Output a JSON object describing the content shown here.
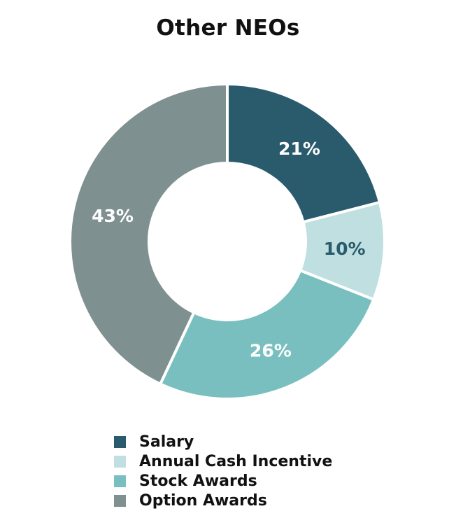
{
  "chart_data": {
    "type": "pie",
    "title": "Other NEOs",
    "categories": [
      "Salary",
      "Annual Cash Incentive",
      "Stock Awards",
      "Option Awards"
    ],
    "values": [
      21,
      10,
      26,
      43
    ],
    "labels": [
      "21%",
      "10%",
      "26%",
      "43%"
    ],
    "colors": [
      "#2a5b6c",
      "#bfdfe0",
      "#79bfbf",
      "#7f9090"
    ],
    "label_colors": [
      "#ffffff",
      "#2a5b6c",
      "#ffffff",
      "#ffffff"
    ],
    "legend_position": "bottom",
    "donut": true
  }
}
